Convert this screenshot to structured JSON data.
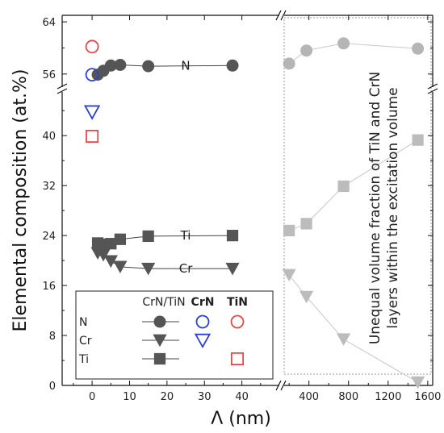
{
  "chart_data": {
    "type": "scatter",
    "ylabel": "Elemental composition (at.%)",
    "xlabel": "Λ (nm)",
    "y_axis": {
      "segments": [
        [
          0,
          47
        ],
        [
          54,
          65
        ]
      ],
      "ticks": [
        0,
        8,
        16,
        24,
        32,
        40,
        56,
        64
      ]
    },
    "x_axis": {
      "segments": [
        {
          "range": [
            -8,
            50
          ],
          "ticks": [
            0,
            10,
            20,
            30,
            40
          ]
        },
        {
          "range": [
            150,
            1650
          ],
          "ticks": [
            400,
            800,
            1200,
            1600
          ]
        }
      ]
    },
    "series": [
      {
        "name": "N",
        "group": "CrN/TiN",
        "marker": "circle",
        "color": "#555555",
        "label": "N",
        "x": [
          1.5,
          3,
          5,
          7.5,
          15,
          37.5
        ],
        "y": [
          55.9,
          56.5,
          57.3,
          57.4,
          57.2,
          57.3
        ]
      },
      {
        "name": "Cr",
        "group": "CrN/TiN",
        "marker": "triangle-down",
        "color": "#555555",
        "label": "Cr",
        "x": [
          1.5,
          3,
          5,
          7.5,
          15,
          37.5
        ],
        "y": [
          21.2,
          20.9,
          19.9,
          19.0,
          18.7,
          18.7
        ]
      },
      {
        "name": "Ti",
        "group": "CrN/TiN",
        "marker": "square",
        "color": "#555555",
        "label": "Ti",
        "x": [
          1.5,
          3,
          5,
          7.5,
          15,
          37.5
        ],
        "y": [
          22.8,
          22.6,
          22.7,
          23.4,
          23.9,
          24.0
        ]
      },
      {
        "name": "N",
        "group": "CrN/TiN (unequal)",
        "marker": "circle",
        "color": "#b5b5b5",
        "x": [
          200,
          375,
          750,
          1500
        ],
        "y": [
          57.6,
          59.6,
          60.7,
          59.9
        ]
      },
      {
        "name": "Cr",
        "group": "CrN/TiN (unequal)",
        "marker": "triangle-down",
        "color": "#bcbcbc",
        "x": [
          200,
          375,
          750,
          1500
        ],
        "y": [
          17.7,
          14.2,
          7.4,
          0.5
        ]
      },
      {
        "name": "Ti",
        "group": "CrN/TiN (unequal)",
        "marker": "square",
        "color": "#bcbcbc",
        "x": [
          200,
          375,
          750,
          1500
        ],
        "y": [
          24.8,
          25.9,
          31.9,
          39.3
        ]
      },
      {
        "name": "N",
        "group": "CrN",
        "marker": "circle-open",
        "color": "#2b3fd6",
        "x": [
          0
        ],
        "y": [
          55.9
        ]
      },
      {
        "name": "Cr",
        "group": "CrN",
        "marker": "triangle-down-open",
        "color": "#2b3fd6",
        "x": [
          0
        ],
        "y": [
          43.8
        ]
      },
      {
        "name": "N",
        "group": "TiN",
        "marker": "circle-open",
        "color": "#e8484a",
        "x": [
          0
        ],
        "y": [
          60.2
        ]
      },
      {
        "name": "Ti",
        "group": "TiN",
        "marker": "square-open",
        "color": "#e8484a",
        "x": [
          0
        ],
        "y": [
          39.9
        ]
      }
    ],
    "legend": {
      "headers": [
        "CrN/TiN",
        "CrN",
        "TiN"
      ],
      "header_colors": [
        "#222222",
        "#2b3fd6",
        "#e8484a"
      ],
      "rows": [
        "N",
        "Cr",
        "Ti"
      ],
      "placement": "bottom-left"
    },
    "annotation": {
      "lines": [
        "Unequal volume fraction of TiN and CrN",
        "layers within the excitation volume"
      ]
    },
    "grid": false
  }
}
